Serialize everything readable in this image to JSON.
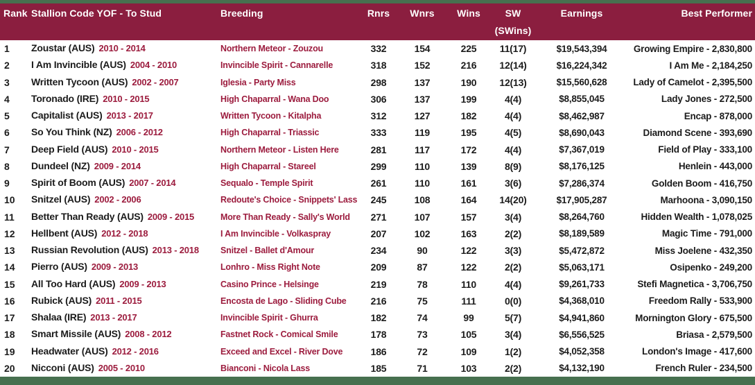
{
  "colors": {
    "border_green": "#47704F",
    "header_maroon": "#8B1E3F",
    "accent_crimson": "#9C1C3E",
    "text_dark": "#1b1b1b",
    "header_text": "#ffffff",
    "body_background": "#ffffff"
  },
  "header": {
    "rank": "Rank",
    "stallion": "Stallion Code YOF - To Stud",
    "breeding": "Breeding",
    "rnrs": "Rnrs",
    "wnrs": "Wnrs",
    "wins": "Wins",
    "sw_line1": "SW",
    "sw_line2": "(SWins)",
    "earnings": "Earnings",
    "best": "Best Performer"
  },
  "rows": [
    {
      "rank": "1",
      "name": "Zoustar (AUS)",
      "years": "2010 - 2014",
      "breeding": "Northern Meteor - Zouzou",
      "rnrs": "332",
      "wnrs": "154",
      "wins": "225",
      "sw": "11(17)",
      "earnings": "$19,543,394",
      "best": "Growing Empire - 2,830,800"
    },
    {
      "rank": "2",
      "name": "I Am Invincible (AUS)",
      "years": "2004 - 2010",
      "breeding": "Invincible Spirit - Cannarelle",
      "rnrs": "318",
      "wnrs": "152",
      "wins": "216",
      "sw": "12(14)",
      "earnings": "$16,224,342",
      "best": "I Am Me - 2,184,250"
    },
    {
      "rank": "3",
      "name": "Written Tycoon (AUS)",
      "years": "2002 - 2007",
      "breeding": "Iglesia - Party Miss",
      "rnrs": "298",
      "wnrs": "137",
      "wins": "190",
      "sw": "12(13)",
      "earnings": "$15,560,628",
      "best": "Lady of Camelot - 2,395,500"
    },
    {
      "rank": "4",
      "name": "Toronado (IRE)",
      "years": "2010 - 2015",
      "breeding": "High Chaparral - Wana Doo",
      "rnrs": "306",
      "wnrs": "137",
      "wins": "199",
      "sw": "4(4)",
      "earnings": "$8,855,045",
      "best": "Lady Jones - 272,500"
    },
    {
      "rank": "5",
      "name": "Capitalist (AUS)",
      "years": "2013 - 2017",
      "breeding": "Written Tycoon - Kitalpha",
      "rnrs": "312",
      "wnrs": "127",
      "wins": "182",
      "sw": "4(4)",
      "earnings": "$8,462,987",
      "best": "Encap - 878,000"
    },
    {
      "rank": "6",
      "name": "So You Think (NZ)",
      "years": "2006 - 2012",
      "breeding": "High Chaparral - Triassic",
      "rnrs": "333",
      "wnrs": "119",
      "wins": "195",
      "sw": "4(5)",
      "earnings": "$8,690,043",
      "best": "Diamond Scene - 393,690"
    },
    {
      "rank": "7",
      "name": "Deep Field (AUS)",
      "years": "2010 - 2015",
      "breeding": "Northern Meteor - Listen Here",
      "rnrs": "281",
      "wnrs": "117",
      "wins": "172",
      "sw": "4(4)",
      "earnings": "$7,367,019",
      "best": "Field of Play - 333,100"
    },
    {
      "rank": "8",
      "name": "Dundeel (NZ)",
      "years": "2009 - 2014",
      "breeding": "High Chaparral - Stareel",
      "rnrs": "299",
      "wnrs": "110",
      "wins": "139",
      "sw": "8(9)",
      "earnings": "$8,176,125",
      "best": "Henlein - 443,000"
    },
    {
      "rank": "9",
      "name": "Spirit of Boom (AUS)",
      "years": "2007 - 2014",
      "breeding": "Sequalo - Temple Spirit",
      "rnrs": "261",
      "wnrs": "110",
      "wins": "161",
      "sw": "3(6)",
      "earnings": "$7,286,374",
      "best": "Golden Boom - 416,750"
    },
    {
      "rank": "10",
      "name": "Snitzel (AUS)",
      "years": "2002 - 2006",
      "breeding": "Redoute's Choice - Snippets' Lass",
      "rnrs": "245",
      "wnrs": "108",
      "wins": "164",
      "sw": "14(20)",
      "earnings": "$17,905,287",
      "best": "Marhoona - 3,090,150"
    },
    {
      "rank": "11",
      "name": "Better Than Ready (AUS)",
      "years": "2009 - 2015",
      "breeding": "More Than Ready - Sally's World",
      "rnrs": "271",
      "wnrs": "107",
      "wins": "157",
      "sw": "3(4)",
      "earnings": "$8,264,760",
      "best": "Hidden Wealth - 1,078,025"
    },
    {
      "rank": "12",
      "name": "Hellbent (AUS)",
      "years": "2012 - 2018",
      "breeding": "I Am Invincible - Volkaspray",
      "rnrs": "207",
      "wnrs": "102",
      "wins": "163",
      "sw": "2(2)",
      "earnings": "$8,189,589",
      "best": "Magic Time - 791,000"
    },
    {
      "rank": "13",
      "name": "Russian Revolution (AUS)",
      "years": "2013 - 2018",
      "breeding": "Snitzel - Ballet d'Amour",
      "rnrs": "234",
      "wnrs": "90",
      "wins": "122",
      "sw": "3(3)",
      "earnings": "$5,472,872",
      "best": "Miss Joelene - 432,350"
    },
    {
      "rank": "14",
      "name": "Pierro (AUS)",
      "years": "2009 - 2013",
      "breeding": "Lonhro - Miss Right Note",
      "rnrs": "209",
      "wnrs": "87",
      "wins": "122",
      "sw": "2(2)",
      "earnings": "$5,063,171",
      "best": "Osipenko - 249,200"
    },
    {
      "rank": "15",
      "name": "All Too Hard (AUS)",
      "years": "2009 - 2013",
      "breeding": "Casino Prince - Helsinge",
      "rnrs": "219",
      "wnrs": "78",
      "wins": "110",
      "sw": "4(4)",
      "earnings": "$9,261,733",
      "best": "Stefi Magnetica - 3,706,750"
    },
    {
      "rank": "16",
      "name": "Rubick (AUS)",
      "years": "2011 - 2015",
      "breeding": "Encosta de Lago - Sliding Cube",
      "rnrs": "216",
      "wnrs": "75",
      "wins": "111",
      "sw": "0(0)",
      "earnings": "$4,368,010",
      "best": "Freedom Rally - 533,900"
    },
    {
      "rank": "17",
      "name": "Shalaa (IRE)",
      "years": "2013 - 2017",
      "breeding": "Invincible Spirit - Ghurra",
      "rnrs": "182",
      "wnrs": "74",
      "wins": "99",
      "sw": "5(7)",
      "earnings": "$4,941,860",
      "best": "Mornington Glory - 675,500"
    },
    {
      "rank": "18",
      "name": "Smart Missile (AUS)",
      "years": "2008 - 2012",
      "breeding": "Fastnet Rock - Comical Smile",
      "rnrs": "178",
      "wnrs": "73",
      "wins": "105",
      "sw": "3(4)",
      "earnings": "$6,556,525",
      "best": "Briasa - 2,579,500"
    },
    {
      "rank": "19",
      "name": "Headwater (AUS)",
      "years": "2012 - 2016",
      "breeding": "Exceed and Excel - River Dove",
      "rnrs": "186",
      "wnrs": "72",
      "wins": "109",
      "sw": "1(2)",
      "earnings": "$4,052,358",
      "best": "London's Image - 417,600"
    },
    {
      "rank": "20",
      "name": "Nicconi (AUS)",
      "years": "2005 - 2010",
      "breeding": "Bianconi - Nicola Lass",
      "rnrs": "185",
      "wnrs": "71",
      "wins": "103",
      "sw": "2(2)",
      "earnings": "$4,132,190",
      "best": "French Ruler - 234,500"
    }
  ]
}
